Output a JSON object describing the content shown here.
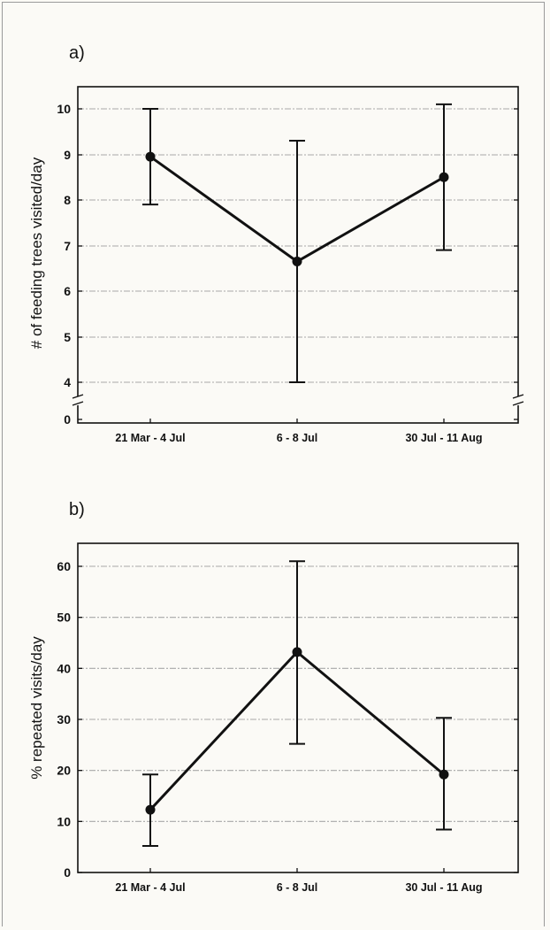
{
  "chart_data": [
    {
      "type": "line",
      "panel_label": "a)",
      "title": "",
      "xlabel": "",
      "ylabel": "# of feeding trees visited/day",
      "categories": [
        "21 Mar - 4 Jul",
        "6 - 8 Jul",
        "30 Jul - 11 Aug"
      ],
      "series": [
        {
          "values": [
            8.95,
            6.65,
            8.5
          ],
          "error_lower": [
            7.9,
            4.0,
            6.9
          ],
          "error_upper": [
            10.0,
            9.3,
            10.1
          ]
        }
      ],
      "y_ticks": [
        "10",
        "9",
        "8",
        "7",
        "6",
        "5",
        "4",
        "0"
      ],
      "ylim": [
        3.3,
        10.5
      ],
      "axis_break": true,
      "grid": true,
      "line_color": "#111111",
      "grid_color": "#a8a8a8"
    },
    {
      "type": "line",
      "panel_label": "b)",
      "title": "",
      "xlabel": "",
      "ylabel": "% repeated visits/day",
      "categories": [
        "21 Mar - 4 Jul",
        "6 - 8 Jul",
        "30 Jul - 11 Aug"
      ],
      "series": [
        {
          "values": [
            12.3,
            43.2,
            19.2
          ],
          "error_lower": [
            5.2,
            25.2,
            8.4
          ],
          "error_upper": [
            19.2,
            61.0,
            30.3
          ]
        }
      ],
      "y_ticks": [
        "60",
        "50",
        "40",
        "30",
        "20",
        "10",
        "0"
      ],
      "ylim": [
        0,
        65
      ],
      "axis_break": false,
      "grid": true,
      "line_color": "#111111",
      "grid_color": "#a8a8a8"
    }
  ]
}
